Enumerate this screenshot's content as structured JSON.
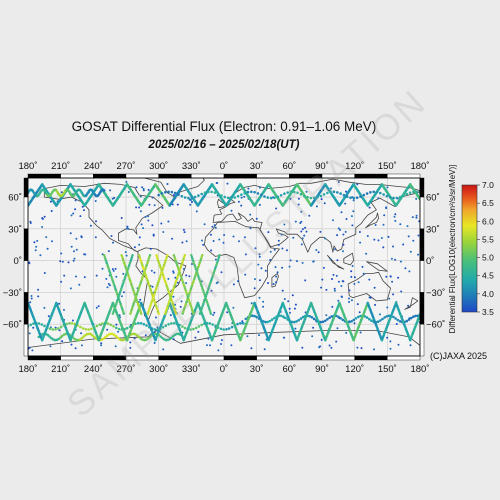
{
  "chart_data": {
    "type": "scatter",
    "title": "GOSAT Differential Flux (Electron: 0.91–1.06 MeV)",
    "subtitle": "2025/02/16 – 2025/02/18(UT)",
    "x_tick_labels": [
      "180˚",
      "210˚",
      "240˚",
      "270˚",
      "300˚",
      "330˚",
      "0˚",
      "30˚",
      "60˚",
      "90˚",
      "120˚",
      "150˚",
      "180˚"
    ],
    "y_tick_labels_left": [
      "60˚",
      "30˚",
      "0˚",
      "−30˚",
      "−60˚"
    ],
    "y_tick_labels_right": [
      "60˚",
      "30˚",
      "0˚",
      "−30˚",
      "−60˚"
    ],
    "lat_ticks": [
      60,
      30,
      0,
      -30,
      -60
    ],
    "lon_range": [
      -180,
      180
    ],
    "lat_range": [
      -90,
      78
    ],
    "colorbar": {
      "label": "Differential Flux[LOG10(electron/cm²/s/sr/MeV)]",
      "range": [
        3.5,
        7.0
      ],
      "tick_labels": [
        "7.0",
        "6.5",
        "6.0",
        "5.5",
        "5.0",
        "4.5",
        "4.0",
        "3.5"
      ],
      "colors": [
        "#1e46c8",
        "#1f7ab8",
        "#22a9ad",
        "#47bf7c",
        "#9bd43a",
        "#e8e626",
        "#f0a82a",
        "#e8551c",
        "#c81414"
      ]
    },
    "copyright": "(C)JAXA 2025",
    "watermark": "SAMPLE ILLUSTRATION",
    "series": [
      {
        "values_note_excluded": false,
        "bands": [
          {
            "lat": 64,
            "lon": [
              -180,
              -110
            ],
            "values": [
              4.2,
              4.6,
              5.0,
              5.3,
              4.9,
              4.5,
              4.1,
              3.9
            ]
          },
          {
            "lat": 62,
            "lon": [
              -60,
              180
            ],
            "values": [
              3.9,
              4.2,
              4.5,
              4.4,
              4.0,
              4.3,
              4.6,
              4.4,
              4.1,
              3.9,
              4.2,
              4.5
            ]
          },
          {
            "lat": -62,
            "lon": [
              -180,
              20
            ],
            "values": [
              4.5,
              5.0,
              5.3,
              5.1,
              4.7,
              4.4,
              4.6,
              4.9,
              4.5,
              4.2
            ]
          },
          {
            "lat": -72,
            "lon": [
              -170,
              -40
            ],
            "values": [
              4.6,
              5.0,
              5.4,
              5.6,
              5.3,
              5.0,
              4.7
            ]
          },
          {
            "lat": -55,
            "lon": [
              20,
              180
            ],
            "values": [
              4.1,
              4.4,
              4.2,
              3.9,
              4.0,
              4.3,
              4.1,
              3.9
            ]
          }
        ],
        "saa_peak": {
          "lat": -28,
          "lon": -60,
          "value": 5.6
        },
        "background_level": 3.7
      }
    ]
  }
}
